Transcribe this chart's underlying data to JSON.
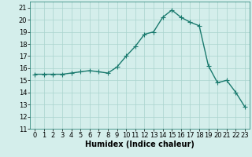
{
  "x": [
    0,
    1,
    2,
    3,
    4,
    5,
    6,
    7,
    8,
    9,
    10,
    11,
    12,
    13,
    14,
    15,
    16,
    17,
    18,
    19,
    20,
    21,
    22,
    23
  ],
  "y": [
    15.5,
    15.5,
    15.5,
    15.5,
    15.6,
    15.7,
    15.8,
    15.7,
    15.6,
    16.1,
    17.0,
    17.8,
    18.8,
    19.0,
    20.2,
    20.8,
    20.2,
    19.8,
    19.5,
    16.2,
    14.8,
    15.0,
    14.0,
    12.8
  ],
  "line_color": "#1a7a6e",
  "marker": "+",
  "markersize": 4,
  "linewidth": 1.0,
  "xlabel": "Humidex (Indice chaleur)",
  "xlabel_fontsize": 7,
  "xlim": [
    -0.5,
    23.5
  ],
  "ylim": [
    11,
    21.5
  ],
  "yticks": [
    11,
    12,
    13,
    14,
    15,
    16,
    17,
    18,
    19,
    20,
    21
  ],
  "xticks": [
    0,
    1,
    2,
    3,
    4,
    5,
    6,
    7,
    8,
    9,
    10,
    11,
    12,
    13,
    14,
    15,
    16,
    17,
    18,
    19,
    20,
    21,
    22,
    23
  ],
  "grid_color": "#aad4ce",
  "bg_color": "#d4eeeb",
  "tick_fontsize": 6,
  "spine_color": "#1a7a6e"
}
